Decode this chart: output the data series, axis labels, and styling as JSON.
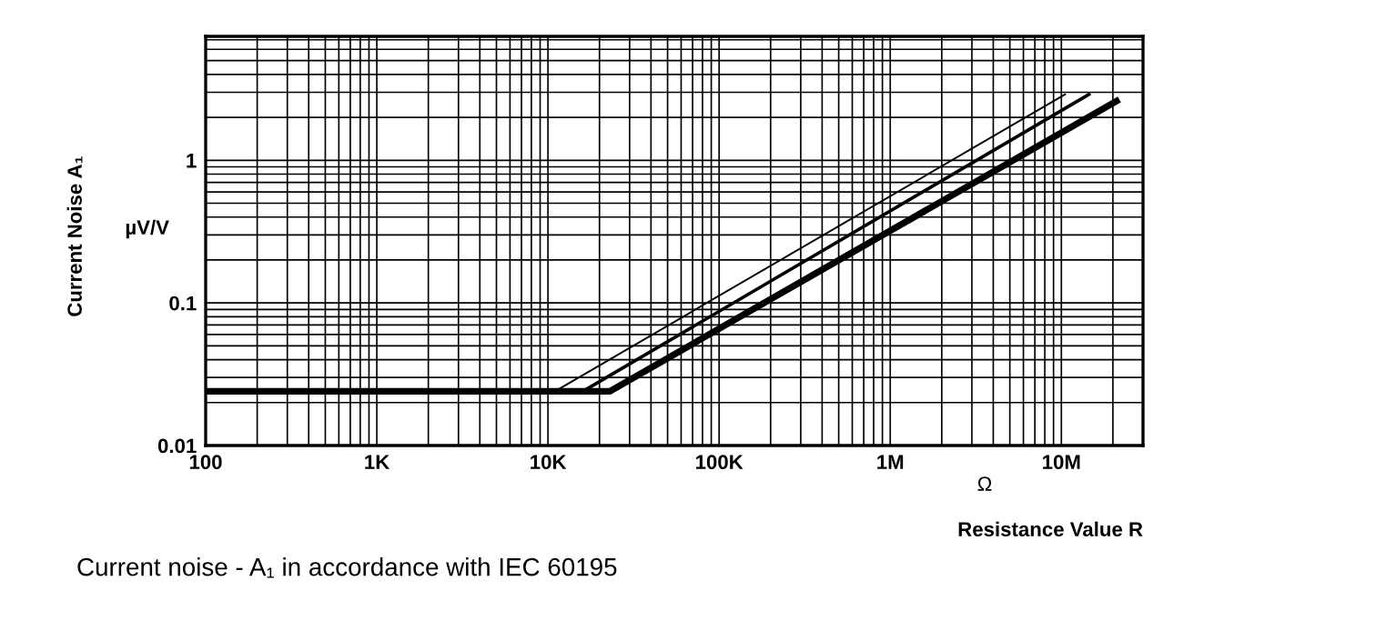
{
  "chart_data": {
    "type": "line",
    "ylabel": "Current Noise A₁",
    "xlabel": "Resistance Value R",
    "log": "xy",
    "grid": true,
    "legend": false,
    "marker": "none",
    "line_style": "solid",
    "xlim": [
      100,
      30000000
    ],
    "ylim": [
      0.01,
      7.4
    ],
    "xticks": [
      {
        "value": 100,
        "label": "100"
      },
      {
        "value": 1000,
        "label": "1K"
      },
      {
        "value": 10000,
        "label": "10K"
      },
      {
        "value": 100000,
        "label": "100K"
      },
      {
        "value": 1000000,
        "label": "1M"
      },
      {
        "value": 10000000,
        "label": "10M"
      }
    ],
    "yticks": [
      0.01,
      0.1,
      1
    ],
    "series": [
      {
        "color": "#000000",
        "x": [
          100,
          23000,
          21000000
        ],
        "values": [
          0.024,
          0.024,
          2.6
        ]
      },
      {
        "color": "#000000",
        "x": [
          100,
          16000,
          14500000
        ],
        "values": [
          0.024,
          0.024,
          2.9
        ]
      },
      {
        "color": "#000000",
        "x": [
          100,
          11000,
          10500000
        ],
        "values": [
          0.024,
          0.024,
          2.9
        ]
      }
    ],
    "annotations": [
      "µV/V",
      "Ω",
      "Current noise - A₁ in accordance with IEC 60195"
    ]
  }
}
